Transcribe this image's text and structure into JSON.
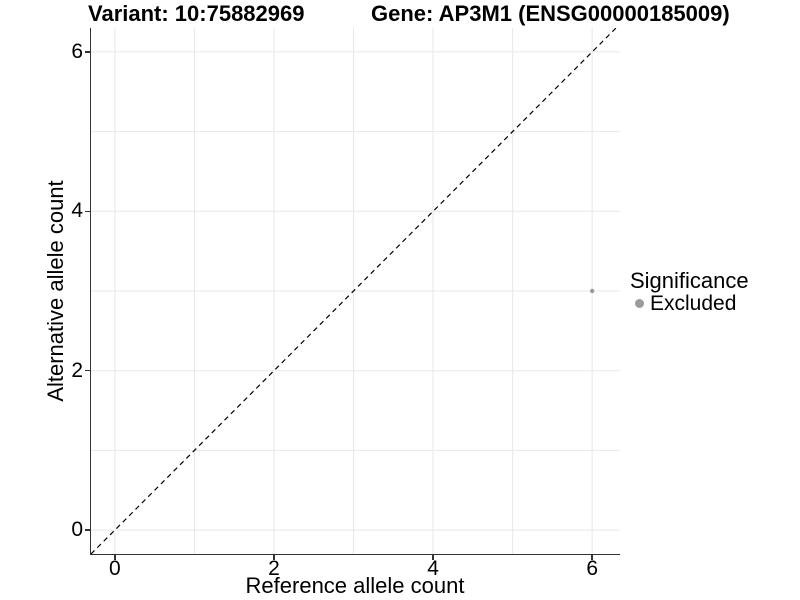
{
  "figure": {
    "title_left": "Variant: 10:75882969",
    "title_right": "Gene: AP3M1 (ENSG00000185009)"
  },
  "chart_data": {
    "type": "scatter",
    "title": "Variant: 10:75882969 — Gene: AP3M1 (ENSG00000185009)",
    "xlabel": "Reference allele count",
    "ylabel": "Alternative allele count",
    "xlim": [
      -0.3,
      6.35
    ],
    "ylim": [
      -0.3,
      6.3
    ],
    "x_ticks": [
      0,
      2,
      4,
      6
    ],
    "y_ticks": [
      0,
      2,
      4,
      6
    ],
    "grid": true,
    "grid_interval": 1,
    "series": [
      {
        "name": "Excluded",
        "color": "#9b9b9b",
        "points": [
          {
            "x": 6,
            "y": 3
          }
        ]
      }
    ],
    "identity_line": {
      "style": "dashed",
      "color": "#000000",
      "from": [
        -0.3,
        -0.3
      ],
      "to": [
        6.35,
        6.35
      ]
    },
    "legend": {
      "title": "Significance",
      "position": "right",
      "entries": [
        {
          "label": "Excluded",
          "color": "#9b9b9b"
        }
      ]
    }
  },
  "legend": {
    "title": "Significance",
    "items": [
      {
        "label": "Excluded",
        "color": "#9b9b9b"
      }
    ]
  },
  "style": {
    "grid_color": "#e8e8e8",
    "axis_color": "#333333",
    "tick_label_color": "#000000",
    "background": "#ffffff",
    "point_radius": 2.2,
    "dash_pattern": "5 4"
  }
}
